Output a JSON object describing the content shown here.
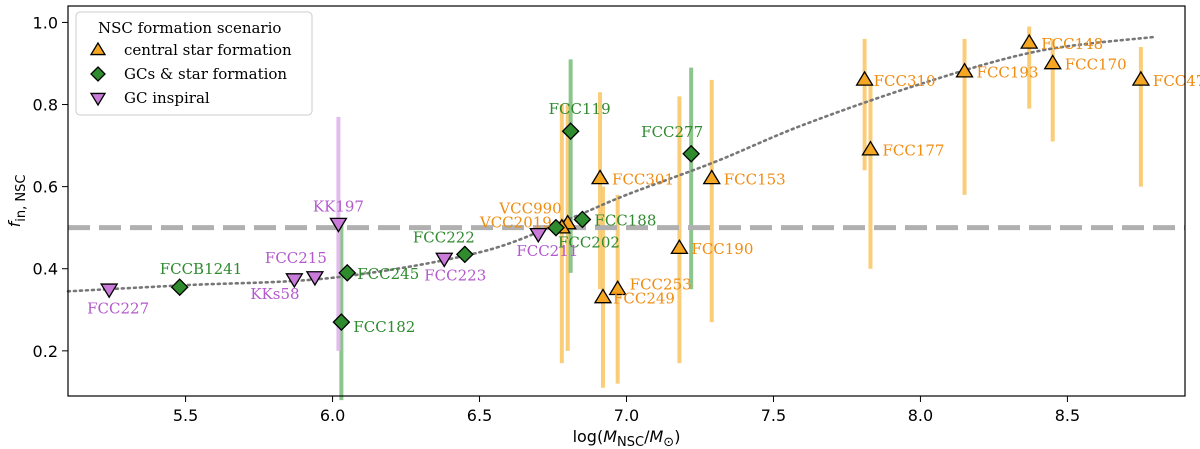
{
  "chart_data": {
    "type": "scatter",
    "xlabel": "log(M_NSC/M_⊙)",
    "ylabel": "f_in, NSC",
    "xlim": [
      5.1,
      8.9
    ],
    "ylim": [
      0.09,
      1.04
    ],
    "xticks": [
      "5.5",
      "6.0",
      "6.5",
      "7.0",
      "7.5",
      "8.0",
      "8.5"
    ],
    "yticks": [
      "0.2",
      "0.4",
      "0.6",
      "0.8",
      "1.0"
    ],
    "reference_line": {
      "y": 0.5,
      "style": "dashed",
      "color": "#b0b0b0"
    },
    "trend_curve": {
      "style": "dotted",
      "color": "#777777",
      "points": [
        [
          5.1,
          0.345
        ],
        [
          5.5,
          0.36
        ],
        [
          6.0,
          0.378
        ],
        [
          6.5,
          0.44
        ],
        [
          6.8,
          0.52
        ],
        [
          7.0,
          0.58
        ],
        [
          7.3,
          0.66
        ],
        [
          7.6,
          0.75
        ],
        [
          8.0,
          0.85
        ],
        [
          8.4,
          0.93
        ],
        [
          8.8,
          0.965
        ]
      ]
    },
    "legend": {
      "title": "NSC formation scenario",
      "position": "top-left",
      "entries": [
        {
          "label": "central star formation",
          "marker": "triangle-up",
          "color": "#f5a623"
        },
        {
          "label": "GCs & star formation",
          "marker": "diamond",
          "color": "#2e8b2e"
        },
        {
          "label": "GC inspiral",
          "marker": "triangle-down",
          "color": "#c87bd8"
        }
      ]
    },
    "series": [
      {
        "name": "central star formation",
        "marker": "triangle-up",
        "color": "#f5a623",
        "label_color": "#f08c10",
        "bar_color": "#f9c86a",
        "points": [
          {
            "name": "FCC148",
            "x": 8.37,
            "y": 0.95,
            "err": [
              0.79,
              0.99
            ]
          },
          {
            "name": "FCC170",
            "x": 8.45,
            "y": 0.9,
            "err": [
              0.71,
              0.96
            ]
          },
          {
            "name": "FCC47",
            "x": 8.75,
            "y": 0.86,
            "err": [
              0.6,
              0.94
            ]
          },
          {
            "name": "FCC193",
            "x": 8.15,
            "y": 0.88,
            "err": [
              0.58,
              0.96
            ]
          },
          {
            "name": "FCC310",
            "x": 7.81,
            "y": 0.86,
            "err": [
              0.64,
              0.96
            ]
          },
          {
            "name": "FCC177",
            "x": 7.83,
            "y": 0.69,
            "err": [
              0.4,
              0.85
            ]
          },
          {
            "name": "FCC153",
            "x": 7.29,
            "y": 0.62,
            "err": [
              0.27,
              0.86
            ]
          },
          {
            "name": "FCC301",
            "x": 6.91,
            "y": 0.62,
            "err": [
              0.35,
              0.83
            ]
          },
          {
            "name": "FCC190",
            "x": 7.18,
            "y": 0.45,
            "err": [
              0.17,
              0.82
            ]
          },
          {
            "name": "VCC990",
            "x": 6.8,
            "y": 0.51,
            "err": [
              0.2,
              0.8
            ]
          },
          {
            "name": "VCC2019",
            "x": 6.78,
            "y": 0.5,
            "err": [
              0.17,
              0.8
            ]
          },
          {
            "name": "FCC253",
            "x": 6.97,
            "y": 0.35,
            "err": [
              0.12,
              0.58
            ]
          },
          {
            "name": "FCC249",
            "x": 6.92,
            "y": 0.33,
            "err": [
              0.11,
              0.6
            ]
          }
        ]
      },
      {
        "name": "GCs & star formation",
        "marker": "diamond",
        "color": "#2e8b2e",
        "label_color": "#2e8b2e",
        "bar_color": "#7fc07f",
        "points": [
          {
            "name": "FCC119",
            "x": 6.81,
            "y": 0.735,
            "err": [
              0.39,
              0.91
            ]
          },
          {
            "name": "FCC277",
            "x": 7.22,
            "y": 0.68,
            "err": [
              0.35,
              0.89
            ]
          },
          {
            "name": "FCC188",
            "x": 6.85,
            "y": 0.52,
            "err": null
          },
          {
            "name": "FCC202",
            "x": 6.76,
            "y": 0.5,
            "err": null
          },
          {
            "name": "FCC222",
            "x": 6.45,
            "y": 0.435,
            "err": null
          },
          {
            "name": "FCC245",
            "x": 6.05,
            "y": 0.39,
            "err": null
          },
          {
            "name": "FCCB1241",
            "x": 5.48,
            "y": 0.355,
            "err": null
          },
          {
            "name": "FCC182",
            "x": 6.03,
            "y": 0.27,
            "err": [
              0.08,
              0.52
            ]
          }
        ]
      },
      {
        "name": "GC inspiral",
        "marker": "triangle-down",
        "color": "#c87bd8",
        "label_color": "#b259cc",
        "bar_color": "#e0b4ec",
        "points": [
          {
            "name": "KK197",
            "x": 6.02,
            "y": 0.51,
            "err": [
              0.2,
              0.77
            ]
          },
          {
            "name": "FCC211",
            "x": 6.7,
            "y": 0.485,
            "err": null
          },
          {
            "name": "FCC223",
            "x": 6.38,
            "y": 0.425,
            "err": null
          },
          {
            "name": "FCC215",
            "x": 5.94,
            "y": 0.38,
            "err": null
          },
          {
            "name": "KKs58",
            "x": 5.87,
            "y": 0.375,
            "err": null
          },
          {
            "name": "FCC227",
            "x": 5.24,
            "y": 0.35,
            "err": null
          }
        ]
      }
    ]
  }
}
